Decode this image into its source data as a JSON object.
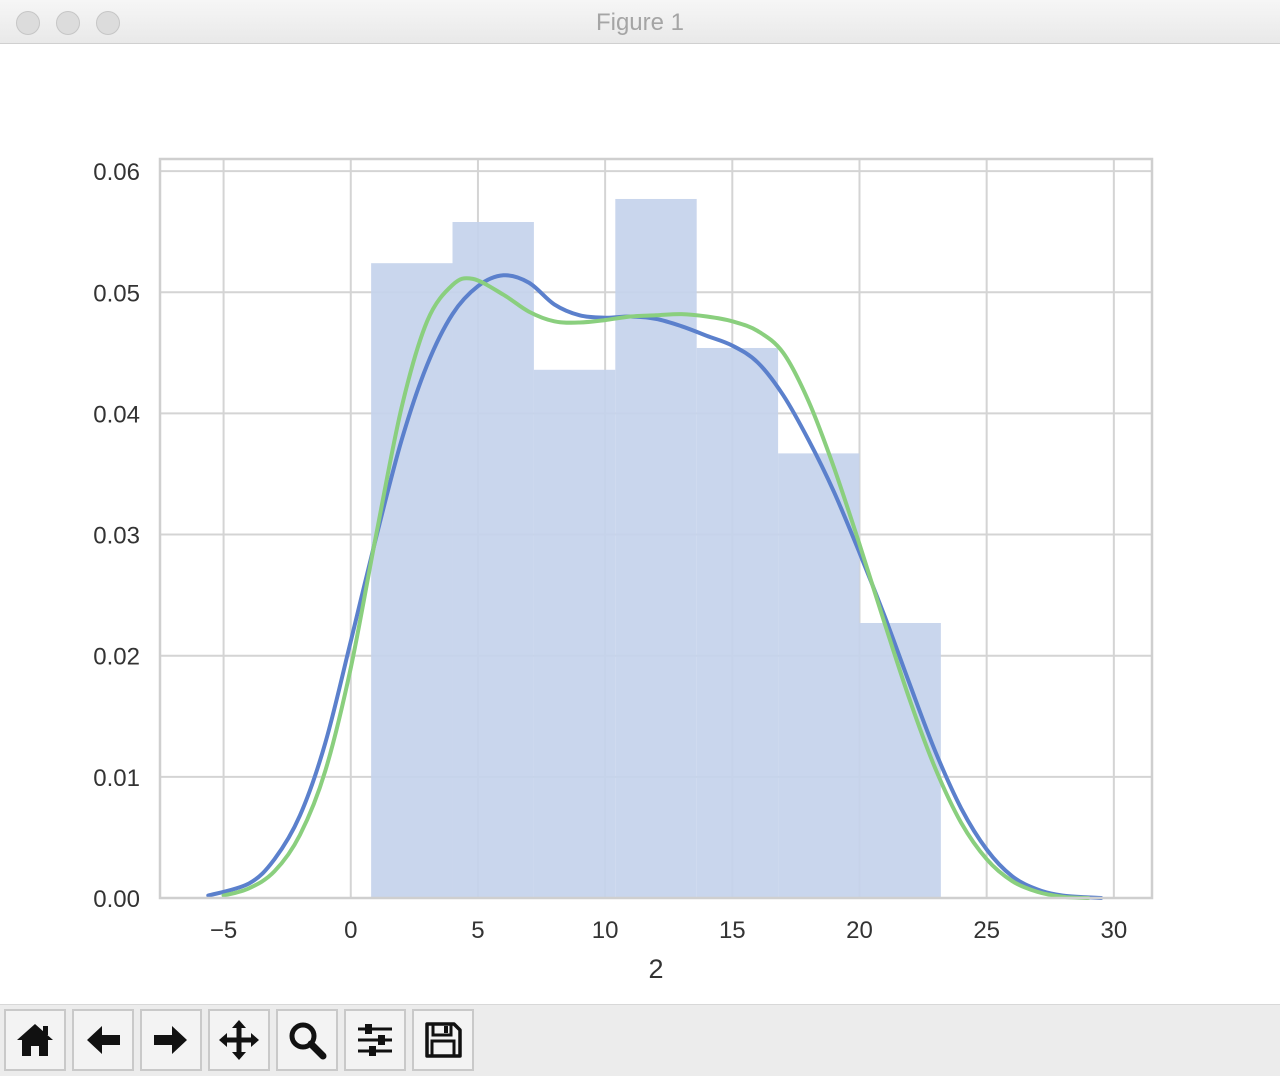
{
  "window": {
    "title": "Figure 1"
  },
  "toolbar": {
    "buttons": [
      {
        "name": "home-button",
        "icon": "home-icon"
      },
      {
        "name": "back-button",
        "icon": "arrow-left-icon"
      },
      {
        "name": "forward-button",
        "icon": "arrow-right-icon"
      },
      {
        "name": "pan-button",
        "icon": "move-icon"
      },
      {
        "name": "zoom-button",
        "icon": "zoom-icon"
      },
      {
        "name": "configure-subplots-button",
        "icon": "sliders-icon"
      },
      {
        "name": "save-button",
        "icon": "save-icon"
      }
    ]
  },
  "chart_data": {
    "type": "histogram",
    "title": "",
    "xlabel": "2",
    "ylabel": "",
    "xlim": [
      -7.5,
      31.5
    ],
    "ylim": [
      0,
      0.061
    ],
    "xticks": [
      -5,
      0,
      5,
      10,
      15,
      20,
      25,
      30
    ],
    "xtick_labels": [
      "−5",
      "0",
      "5",
      "10",
      "15",
      "20",
      "25",
      "30"
    ],
    "yticks": [
      0.0,
      0.01,
      0.02,
      0.03,
      0.04,
      0.05,
      0.06
    ],
    "ytick_labels": [
      "0.00",
      "0.01",
      "0.02",
      "0.03",
      "0.04",
      "0.05",
      "0.06"
    ],
    "grid": true,
    "colors": {
      "bars": "#c4d2ec",
      "kde_blue": "#5b80cc",
      "kde_green": "#8acf7e",
      "grid": "#d4d4d4",
      "frame": "#cfcfcf",
      "text": "#333333"
    },
    "bars": [
      {
        "x0": 0.8,
        "x1": 4.0,
        "height": 0.0524
      },
      {
        "x0": 4.0,
        "x1": 7.2,
        "height": 0.0558
      },
      {
        "x0": 7.2,
        "x1": 10.4,
        "height": 0.0436
      },
      {
        "x0": 10.4,
        "x1": 13.6,
        "height": 0.0577
      },
      {
        "x0": 13.6,
        "x1": 16.8,
        "height": 0.0454
      },
      {
        "x0": 16.8,
        "x1": 20.0,
        "height": 0.0367
      },
      {
        "x0": 20.0,
        "x1": 23.2,
        "height": 0.0227
      }
    ],
    "series": [
      {
        "color": "#5b80cc",
        "x": [
          -5.6,
          -4.0,
          -3.0,
          -2.0,
          -1.0,
          0.0,
          1.0,
          2.0,
          3.0,
          4.0,
          5.0,
          6.0,
          7.0,
          8.0,
          9.0,
          10.0,
          11.0,
          12.0,
          13.0,
          14.0,
          15.0,
          16.0,
          17.0,
          18.0,
          19.0,
          20.0,
          21.0,
          22.0,
          23.0,
          24.0,
          25.0,
          26.0,
          27.0,
          28.0,
          29.5
        ],
        "y": [
          0.0002,
          0.0012,
          0.0032,
          0.0068,
          0.0128,
          0.0212,
          0.0298,
          0.0378,
          0.044,
          0.0482,
          0.0505,
          0.0514,
          0.0508,
          0.049,
          0.0481,
          0.0479,
          0.048,
          0.0478,
          0.0472,
          0.0464,
          0.0456,
          0.0442,
          0.0415,
          0.0378,
          0.0335,
          0.0285,
          0.0232,
          0.0175,
          0.012,
          0.0074,
          0.004,
          0.0018,
          0.0007,
          0.0002,
          0.0
        ]
      },
      {
        "color": "#8acf7e",
        "x": [
          -5.0,
          -4.0,
          -3.0,
          -2.0,
          -1.0,
          0.0,
          1.0,
          2.0,
          3.0,
          4.0,
          4.8,
          6.0,
          7.0,
          8.0,
          9.0,
          10.0,
          11.0,
          12.0,
          13.0,
          14.0,
          15.0,
          16.0,
          17.0,
          18.0,
          19.0,
          20.0,
          21.0,
          22.0,
          23.0,
          24.0,
          25.0,
          26.0,
          27.0,
          28.0,
          29.0
        ],
        "y": [
          0.0002,
          0.0008,
          0.0022,
          0.0052,
          0.0105,
          0.019,
          0.03,
          0.0405,
          0.0476,
          0.0506,
          0.0511,
          0.0498,
          0.0484,
          0.0476,
          0.0475,
          0.0477,
          0.048,
          0.0481,
          0.0482,
          0.048,
          0.0476,
          0.0468,
          0.045,
          0.041,
          0.0355,
          0.0292,
          0.0226,
          0.0162,
          0.0106,
          0.0062,
          0.0032,
          0.0014,
          0.0005,
          0.0001,
          0.0
        ]
      }
    ]
  }
}
